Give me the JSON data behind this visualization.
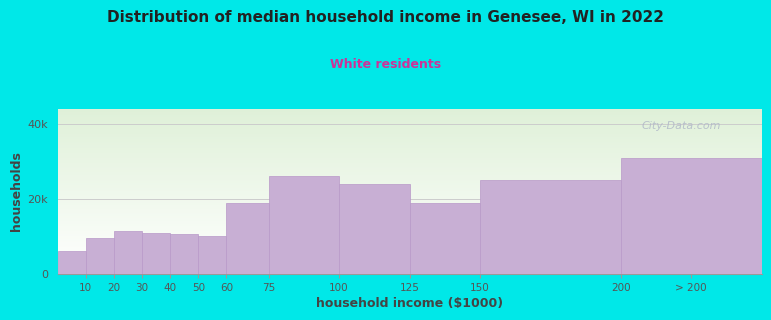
{
  "title": "Distribution of median household income in Genesee, WI in 2022",
  "subtitle": "White residents",
  "xlabel": "household income ($1000)",
  "ylabel": "households",
  "categories": [
    "10",
    "20",
    "30",
    "40",
    "50",
    "60",
    "75",
    "100",
    "125",
    "150",
    "200",
    "> 200"
  ],
  "values": [
    6000,
    9500,
    11500,
    11000,
    10500,
    10000,
    19000,
    26000,
    24000,
    19000,
    25000,
    31000
  ],
  "bar_color": "#c8afd4",
  "bar_edge_color": "#b898c8",
  "background_outer": "#00e8e8",
  "plot_bg_top": "#dff0d8",
  "plot_bg_bottom": "#ffffff",
  "title_color": "#222222",
  "subtitle_color": "#cc3399",
  "axis_label_color": "#444444",
  "tick_color": "#555555",
  "yticks": [
    0,
    20000,
    40000
  ],
  "ytick_labels": [
    "0",
    "20k",
    "40k"
  ],
  "ylim": [
    0,
    44000
  ],
  "watermark": "City-Data.com",
  "left_edges": [
    0,
    10,
    20,
    30,
    40,
    50,
    60,
    75,
    100,
    125,
    150,
    200
  ],
  "right_edges": [
    10,
    20,
    30,
    40,
    50,
    60,
    75,
    100,
    125,
    150,
    200,
    250
  ],
  "tick_positions": [
    10,
    20,
    30,
    40,
    50,
    60,
    75,
    100,
    125,
    150,
    200,
    225
  ],
  "xlim": [
    0,
    250
  ]
}
